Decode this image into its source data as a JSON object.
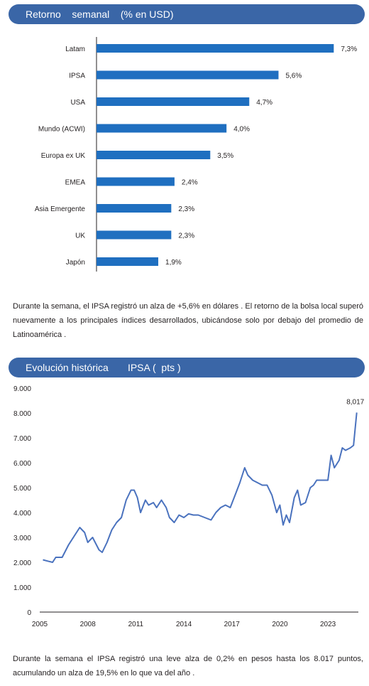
{
  "section1": {
    "title": "Retorno    semanal    (% en USD)",
    "chart_data": {
      "type": "bar",
      "orientation": "horizontal",
      "title": "Retorno semanal (% en USD)",
      "categories": [
        "Latam",
        "IPSA",
        "USA",
        "Mundo (ACWI)",
        "Europa ex UK",
        "EMEA",
        "Asia Emergente",
        "UK",
        "Japón"
      ],
      "values": [
        7.3,
        5.6,
        4.7,
        4.0,
        3.5,
        2.4,
        2.3,
        2.3,
        1.9
      ],
      "value_labels": [
        "7,3%",
        "5,6%",
        "4,7%",
        "4,0%",
        "3,5%",
        "2,4%",
        "2,3%",
        "2,3%",
        "1,9%"
      ],
      "bar_color": "#1f6fc0",
      "grid": false,
      "legend": "none"
    },
    "paragraph": "Durante la semana, el IPSA registró un alza de +5,6% en dólares . El retorno de la bolsa local superó nuevamente a los principales índices desarrollados, ubicándose solo por debajo del promedio de Latinoamérica ."
  },
  "section2": {
    "title": "Evolución histórica       IPSA (  pts )",
    "chart_data": {
      "type": "line",
      "title": "Evolución histórica IPSA ( pts )",
      "ylim": [
        0,
        9000
      ],
      "y_ticks": [
        "0",
        "1.000",
        "2.000",
        "3.000",
        "4.000",
        "5.000",
        "6.000",
        "7.000",
        "8.000",
        "9.000"
      ],
      "x_ticks": [
        "2005",
        "2008",
        "2011",
        "2014",
        "2017",
        "2020",
        "2023"
      ],
      "xlim": [
        2005,
        2024.9
      ],
      "line_color": "#4a72be",
      "grid": false,
      "legend": "none",
      "annotation": "8,017",
      "series": [
        {
          "x": [
            2005.2,
            2005.5,
            2005.8,
            2006.0,
            2006.4,
            2006.8,
            2007.2,
            2007.5,
            2007.8,
            2008.0,
            2008.3,
            2008.7,
            2008.9,
            2009.2,
            2009.5,
            2009.8,
            2010.1,
            2010.4,
            2010.7,
            2010.9,
            2011.1,
            2011.3,
            2011.6,
            2011.8,
            2012.1,
            2012.3,
            2012.6,
            2012.9,
            2013.1,
            2013.4,
            2013.7,
            2014.0,
            2014.3,
            2014.6,
            2014.9,
            2015.3,
            2015.7,
            2016.0,
            2016.3,
            2016.6,
            2016.9,
            2017.2,
            2017.5,
            2017.8,
            2018.0,
            2018.3,
            2018.6,
            2018.9,
            2019.2,
            2019.5,
            2019.8,
            2020.0,
            2020.2,
            2020.4,
            2020.6,
            2020.9,
            2021.1,
            2021.3,
            2021.6,
            2021.9,
            2022.1,
            2022.3,
            2022.5,
            2022.8,
            2023.0,
            2023.2,
            2023.4,
            2023.7,
            2023.9,
            2024.1,
            2024.4,
            2024.6,
            2024.8
          ],
          "y": [
            2100,
            2050,
            2000,
            2200,
            2200,
            2700,
            3100,
            3400,
            3200,
            2800,
            3000,
            2500,
            2400,
            2800,
            3300,
            3600,
            3800,
            4500,
            4900,
            4900,
            4600,
            4000,
            4500,
            4300,
            4400,
            4200,
            4500,
            4200,
            3800,
            3600,
            3900,
            3800,
            3950,
            3900,
            3900,
            3800,
            3700,
            4000,
            4200,
            4300,
            4200,
            4700,
            5200,
            5800,
            5500,
            5300,
            5200,
            5100,
            5100,
            4700,
            4000,
            4300,
            3500,
            3900,
            3600,
            4600,
            4900,
            4300,
            4400,
            5000,
            5100,
            5300,
            5300,
            5300,
            5300,
            6300,
            5800,
            6100,
            6600,
            6500,
            6600,
            6700,
            8017
          ]
        }
      ]
    },
    "paragraph": "Durante la semana el IPSA registró una leve alza de 0,2% en pesos hasta los 8.017 puntos, acumulando un alza de 19,5% en lo que va del año ."
  }
}
